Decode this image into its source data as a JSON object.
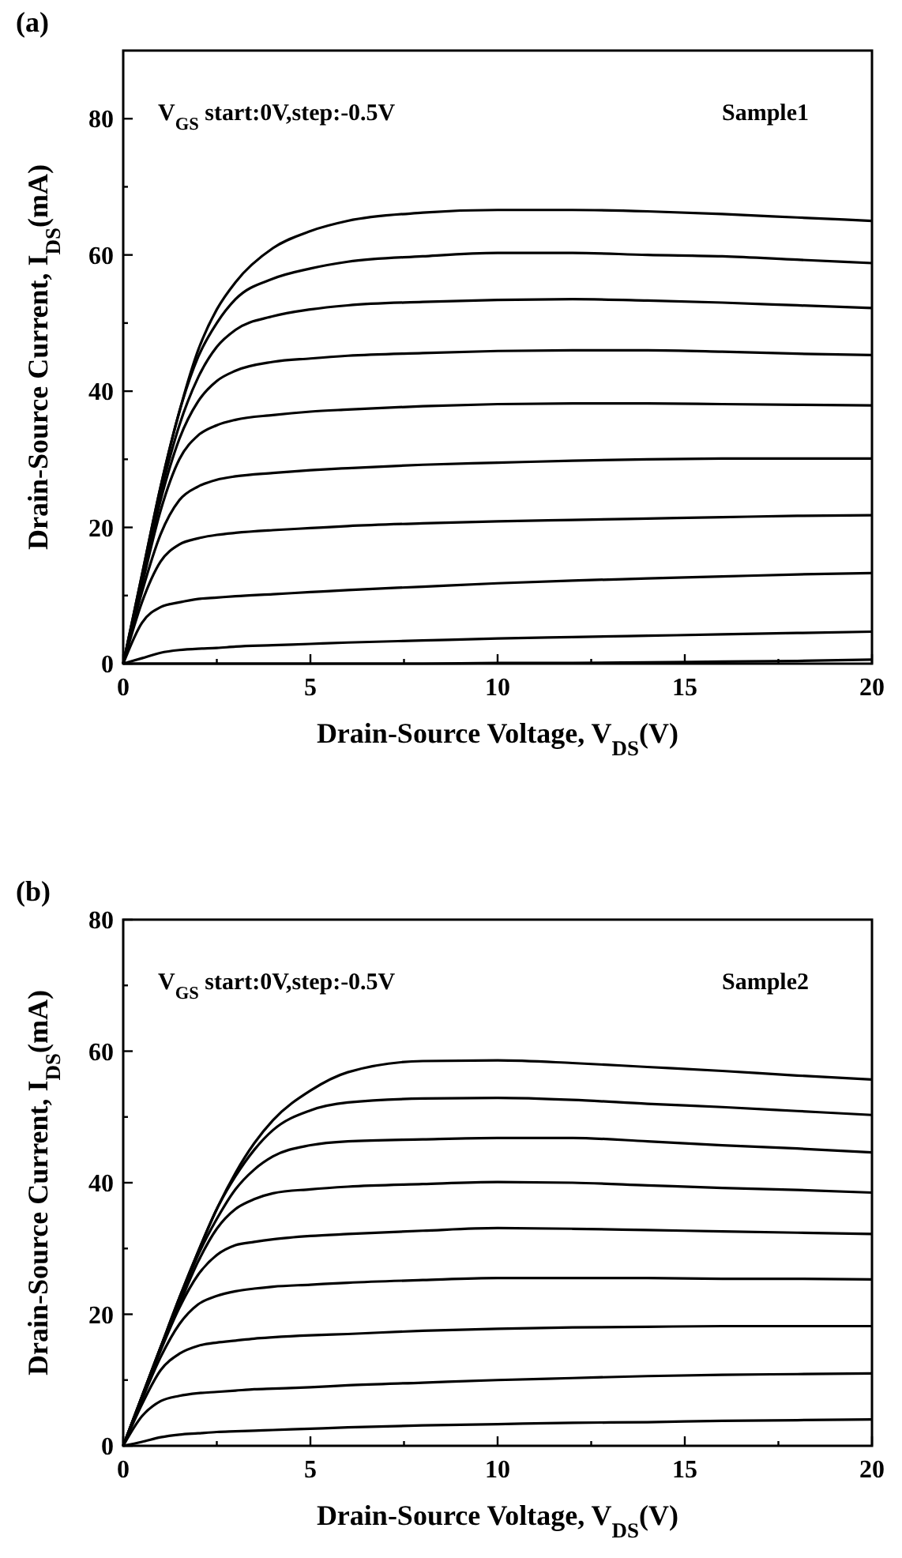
{
  "chart_data": [
    {
      "type": "line",
      "title": "(a)",
      "xlabel": "Drain-Source Voltage, V$_{DS}$(V)",
      "ylabel": "Drain-Source Current, I$_{DS}$(mA)",
      "annotations": [
        "V$_{GS}$ start:0V,step:-0.5V",
        "Sample1"
      ],
      "xlim": [
        0,
        20
      ],
      "ylim": [
        0,
        90
      ],
      "xticks": [
        0,
        {
          "value": 2.5,
          "label": null
        },
        5,
        {
          "value": 7.5,
          "label": null
        },
        10,
        {
          "value": 12.5,
          "label": null
        },
        15,
        {
          "value": 17.5,
          "label": null
        },
        20
      ],
      "yticks": [
        0,
        {
          "value": 10,
          "label": null
        },
        20,
        {
          "value": 30,
          "label": null
        },
        40,
        {
          "value": 50,
          "label": null
        },
        60,
        {
          "value": 70,
          "label": null
        },
        80
      ],
      "marker": "none",
      "line_style": "solid",
      "x": [
        0,
        0.5,
        1,
        1.5,
        2,
        2.5,
        3,
        4,
        5,
        6,
        8,
        10,
        12,
        14,
        16,
        18,
        20
      ],
      "series": [
        {
          "color": "#000000",
          "values": [
            0,
            13,
            26,
            37,
            46,
            52,
            56,
            61,
            63.5,
            65,
            66.2,
            66.6,
            66.6,
            66.4,
            66,
            65.5,
            65
          ]
        },
        {
          "color": "#000000",
          "values": [
            0,
            13,
            26,
            37,
            45,
            50,
            53.5,
            56.5,
            58,
            59,
            59.8,
            60.3,
            60.3,
            60,
            59.8,
            59.3,
            58.8
          ]
        },
        {
          "color": "#000000",
          "values": [
            0,
            12.5,
            25,
            35,
            42,
            46.5,
            49,
            51,
            52,
            52.6,
            53.1,
            53.4,
            53.5,
            53.3,
            53,
            52.6,
            52.2
          ]
        },
        {
          "color": "#000000",
          "values": [
            0,
            12,
            24,
            33,
            38.5,
            41.5,
            43,
            44.3,
            44.8,
            45.2,
            45.6,
            45.9,
            46,
            46,
            45.8,
            45.5,
            45.3
          ]
        },
        {
          "color": "#000000",
          "values": [
            0,
            11.5,
            22.5,
            30,
            33.5,
            35,
            35.8,
            36.5,
            37,
            37.3,
            37.8,
            38.1,
            38.2,
            38.2,
            38.1,
            38,
            37.9
          ]
        },
        {
          "color": "#000000",
          "values": [
            0,
            10.5,
            19,
            24,
            26,
            27,
            27.5,
            28,
            28.4,
            28.7,
            29.2,
            29.5,
            29.8,
            30,
            30.1,
            30.1,
            30.1
          ]
        },
        {
          "color": "#000000",
          "values": [
            0,
            9,
            15,
            17.5,
            18.4,
            18.9,
            19.2,
            19.6,
            19.9,
            20.2,
            20.6,
            20.9,
            21.1,
            21.3,
            21.5,
            21.7,
            21.8
          ]
        },
        {
          "color": "#000000",
          "values": [
            0,
            6,
            8.3,
            9,
            9.5,
            9.7,
            9.9,
            10.2,
            10.5,
            10.8,
            11.3,
            11.8,
            12.2,
            12.5,
            12.8,
            13.1,
            13.3
          ]
        },
        {
          "color": "#000000",
          "values": [
            0,
            0.8,
            1.6,
            2,
            2.2,
            2.3,
            2.5,
            2.7,
            2.9,
            3.1,
            3.4,
            3.7,
            3.9,
            4.1,
            4.3,
            4.5,
            4.7
          ]
        },
        {
          "color": "#000000",
          "values": [
            0,
            0,
            0,
            0,
            0,
            0,
            0,
            0,
            0,
            0,
            0,
            0.1,
            0.1,
            0.2,
            0.3,
            0.4,
            0.6
          ]
        }
      ]
    },
    {
      "type": "line",
      "title": "(b)",
      "xlabel": "Drain-Source Voltage, V$_{DS}$(V)",
      "ylabel": "Drain-Source Current, I$_{DS}$(mA)",
      "annotations": [
        "V$_{GS}$ start:0V,step:-0.5V",
        "Sample2"
      ],
      "xlim": [
        0,
        20
      ],
      "ylim": [
        0,
        80
      ],
      "xticks": [
        0,
        {
          "value": 2.5,
          "label": null
        },
        5,
        {
          "value": 7.5,
          "label": null
        },
        10,
        {
          "value": 12.5,
          "label": null
        },
        15,
        {
          "value": 17.5,
          "label": null
        },
        20
      ],
      "yticks": [
        0,
        {
          "value": 10,
          "label": null
        },
        20,
        {
          "value": 30,
          "label": null
        },
        40,
        {
          "value": 50,
          "label": null
        },
        60,
        {
          "value": 70,
          "label": null
        },
        80
      ],
      "marker": "none",
      "line_style": "solid",
      "x": [
        0,
        0.5,
        1,
        1.5,
        2,
        2.5,
        3,
        3.5,
        4,
        5,
        6,
        8,
        10,
        12,
        14,
        16,
        18,
        20
      ],
      "series": [
        {
          "color": "#000000",
          "values": [
            0,
            7.5,
            15,
            22.5,
            29.5,
            36,
            41.5,
            46,
            49.5,
            54,
            56.8,
            58.5,
            58.6,
            58.2,
            57.6,
            57,
            56.3,
            55.7
          ]
        },
        {
          "color": "#000000",
          "values": [
            0,
            7.5,
            15,
            22.5,
            29.5,
            36,
            41,
            45,
            48,
            51,
            52.2,
            52.8,
            52.9,
            52.6,
            52,
            51.5,
            50.9,
            50.3
          ]
        },
        {
          "color": "#000000",
          "values": [
            0,
            7.5,
            15,
            22,
            29,
            34.5,
            39,
            42,
            44,
            45.7,
            46.3,
            46.6,
            46.8,
            46.8,
            46.3,
            45.7,
            45.2,
            44.6
          ]
        },
        {
          "color": "#000000",
          "values": [
            0,
            7.4,
            14.8,
            21.5,
            28,
            33,
            36,
            37.5,
            38.4,
            39,
            39.4,
            39.8,
            40.1,
            40,
            39.6,
            39.2,
            38.9,
            38.5
          ]
        },
        {
          "color": "#000000",
          "values": [
            0,
            7.3,
            14.5,
            21,
            26,
            29,
            30.5,
            31,
            31.4,
            31.9,
            32.2,
            32.7,
            33.1,
            33,
            32.8,
            32.6,
            32.4,
            32.2
          ]
        },
        {
          "color": "#000000",
          "values": [
            0,
            7,
            13.5,
            18.5,
            21.5,
            22.8,
            23.5,
            23.9,
            24.2,
            24.5,
            24.8,
            25.2,
            25.5,
            25.5,
            25.5,
            25.4,
            25.4,
            25.3
          ]
        },
        {
          "color": "#000000",
          "values": [
            0,
            6.3,
            11.5,
            14,
            15.2,
            15.7,
            16,
            16.3,
            16.5,
            16.8,
            17,
            17.5,
            17.8,
            18,
            18.1,
            18.2,
            18.2,
            18.2
          ]
        },
        {
          "color": "#000000",
          "values": [
            0,
            4.5,
            6.8,
            7.6,
            8,
            8.2,
            8.4,
            8.6,
            8.7,
            8.9,
            9.2,
            9.6,
            10,
            10.3,
            10.6,
            10.8,
            10.9,
            11
          ]
        },
        {
          "color": "#000000",
          "values": [
            0,
            0.6,
            1.3,
            1.7,
            1.9,
            2.1,
            2.2,
            2.3,
            2.4,
            2.6,
            2.8,
            3.1,
            3.3,
            3.5,
            3.6,
            3.8,
            3.9,
            4
          ]
        }
      ]
    }
  ]
}
